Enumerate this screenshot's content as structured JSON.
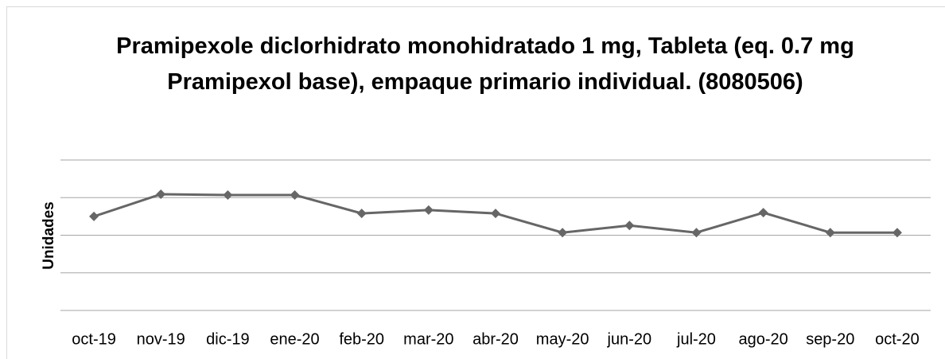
{
  "chart_data": {
    "type": "line",
    "title": "Pramipexole diclorhidrato monohidratado 1 mg, Tableta (eq. 0.7 mg Pramipexol base), empaque primario individual. (8080506)",
    "y_label": "Unidades",
    "categories": [
      "oct-19",
      "nov-19",
      "dic-19",
      "ene-20",
      "feb-20",
      "mar-20",
      "abr-20",
      "may-20",
      "jun-20",
      "jul-20",
      "ago-20",
      "sep-20",
      "oct-20"
    ],
    "series": [
      {
        "name": "Unidades",
        "color": "#666666",
        "values": [
          2.5,
          3.09,
          3.07,
          3.07,
          2.58,
          2.67,
          2.58,
          2.07,
          2.26,
          2.07,
          2.6,
          2.07,
          2.07
        ]
      }
    ],
    "ylim": [
      0,
      4
    ],
    "yticks": [
      0,
      1,
      2,
      3,
      4
    ],
    "grid": true
  }
}
